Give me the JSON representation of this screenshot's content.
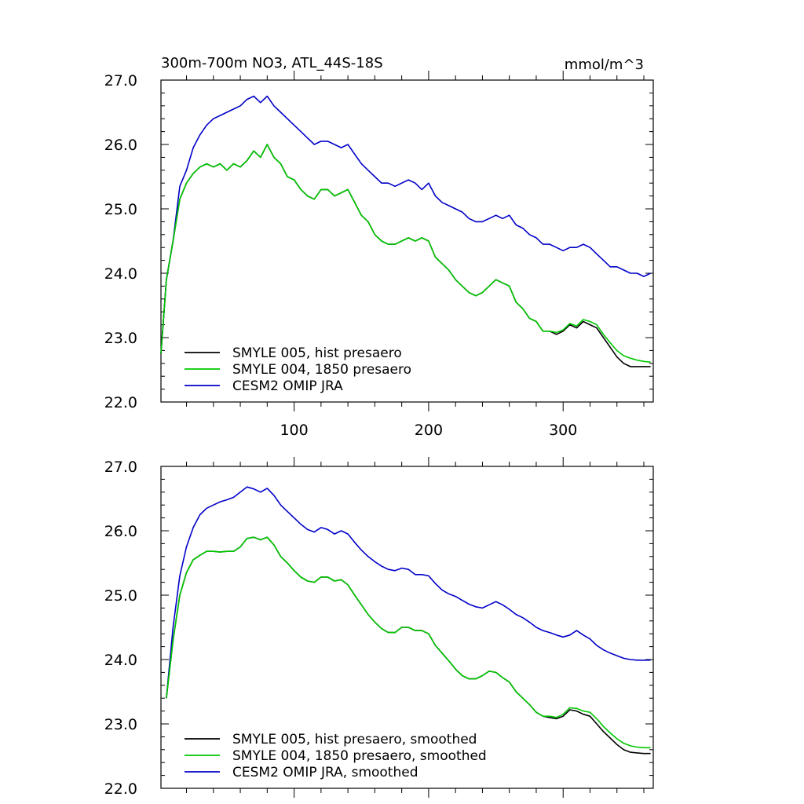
{
  "figure": {
    "title": "300m-700m NO3, ATL_44S-18S",
    "units": "mmol/m^3"
  },
  "chart_data": [
    {
      "type": "line",
      "title": "300m-700m NO3, ATL_44S-18S",
      "units": "mmol/m^3",
      "xlim": [
        1,
        367
      ],
      "ylim": [
        22.0,
        27.0
      ],
      "xticks": [
        100,
        200,
        300
      ],
      "xtick_labels": [
        "100",
        "200",
        "300"
      ],
      "yticks": [
        22.0,
        23.0,
        24.0,
        25.0,
        26.0,
        27.0
      ],
      "ytick_labels": [
        "22.0",
        "23.0",
        "24.0",
        "25.0",
        "26.0",
        "27.0"
      ],
      "grid": false,
      "legend_position": "bottom-left",
      "series": [
        {
          "name": "SMYLE 005, hist presaero",
          "color": "#000000",
          "x": [
            1,
            5,
            10,
            15,
            20,
            25,
            30,
            35,
            40,
            45,
            50,
            55,
            60,
            65,
            70,
            75,
            80,
            85,
            90,
            95,
            100,
            105,
            110,
            115,
            120,
            125,
            130,
            135,
            140,
            145,
            150,
            155,
            160,
            165,
            170,
            175,
            180,
            185,
            190,
            195,
            200,
            205,
            210,
            215,
            220,
            225,
            230,
            235,
            240,
            245,
            250,
            255,
            260,
            265,
            270,
            275,
            280,
            285,
            290,
            295,
            300,
            305,
            310,
            315,
            320,
            325,
            330,
            335,
            340,
            345,
            350,
            355,
            360,
            365
          ],
          "y": [
            22.75,
            23.9,
            24.5,
            25.15,
            25.4,
            25.55,
            25.65,
            25.7,
            25.65,
            25.7,
            25.6,
            25.7,
            25.65,
            25.75,
            25.9,
            25.8,
            26.0,
            25.8,
            25.7,
            25.5,
            25.45,
            25.3,
            25.2,
            25.15,
            25.3,
            25.3,
            25.2,
            25.25,
            25.3,
            25.1,
            24.9,
            24.8,
            24.6,
            24.5,
            24.45,
            24.45,
            24.5,
            24.55,
            24.5,
            24.55,
            24.5,
            24.25,
            24.15,
            24.05,
            23.9,
            23.8,
            23.7,
            23.65,
            23.7,
            23.8,
            23.9,
            23.85,
            23.8,
            23.55,
            23.45,
            23.3,
            23.25,
            23.1,
            23.1,
            23.05,
            23.1,
            23.2,
            23.15,
            23.25,
            23.2,
            23.15,
            23.0,
            22.85,
            22.7,
            22.6,
            22.55,
            22.55,
            22.55,
            22.55
          ]
        },
        {
          "name": "SMYLE 004, 1850 presaero",
          "color": "#00c800",
          "x": [
            1,
            5,
            10,
            15,
            20,
            25,
            30,
            35,
            40,
            45,
            50,
            55,
            60,
            65,
            70,
            75,
            80,
            85,
            90,
            95,
            100,
            105,
            110,
            115,
            120,
            125,
            130,
            135,
            140,
            145,
            150,
            155,
            160,
            165,
            170,
            175,
            180,
            185,
            190,
            195,
            200,
            205,
            210,
            215,
            220,
            225,
            230,
            235,
            240,
            245,
            250,
            255,
            260,
            265,
            270,
            275,
            280,
            285,
            290,
            295,
            300,
            305,
            310,
            315,
            320,
            325,
            330,
            335,
            340,
            345,
            350,
            355,
            360,
            365
          ],
          "y": [
            22.75,
            23.9,
            24.5,
            25.15,
            25.4,
            25.55,
            25.65,
            25.7,
            25.65,
            25.7,
            25.6,
            25.7,
            25.65,
            25.75,
            25.9,
            25.8,
            26.0,
            25.8,
            25.7,
            25.5,
            25.45,
            25.3,
            25.2,
            25.15,
            25.3,
            25.3,
            25.2,
            25.25,
            25.3,
            25.1,
            24.9,
            24.8,
            24.6,
            24.5,
            24.45,
            24.45,
            24.5,
            24.55,
            24.5,
            24.55,
            24.5,
            24.25,
            24.15,
            24.05,
            23.9,
            23.8,
            23.7,
            23.65,
            23.7,
            23.8,
            23.9,
            23.85,
            23.8,
            23.55,
            23.45,
            23.3,
            23.25,
            23.1,
            23.1,
            23.08,
            23.12,
            23.22,
            23.18,
            23.28,
            23.25,
            23.2,
            23.05,
            22.92,
            22.8,
            22.72,
            22.68,
            22.65,
            22.63,
            22.62
          ]
        },
        {
          "name": "CESM2 OMIP JRA",
          "color": "#0000c8",
          "x": [
            1,
            5,
            10,
            15,
            20,
            25,
            30,
            35,
            40,
            45,
            50,
            55,
            60,
            65,
            70,
            75,
            80,
            85,
            90,
            95,
            100,
            105,
            110,
            115,
            120,
            125,
            130,
            135,
            140,
            145,
            150,
            155,
            160,
            165,
            170,
            175,
            180,
            185,
            190,
            195,
            200,
            205,
            210,
            215,
            220,
            225,
            230,
            235,
            240,
            245,
            250,
            255,
            260,
            265,
            270,
            275,
            280,
            285,
            290,
            295,
            300,
            305,
            310,
            315,
            320,
            325,
            330,
            335,
            340,
            345,
            350,
            355,
            360,
            365
          ],
          "y": [
            22.75,
            23.9,
            24.5,
            25.35,
            25.6,
            25.95,
            26.15,
            26.3,
            26.4,
            26.45,
            26.5,
            26.55,
            26.6,
            26.7,
            26.75,
            26.65,
            26.75,
            26.6,
            26.5,
            26.4,
            26.3,
            26.2,
            26.1,
            26.0,
            26.05,
            26.05,
            26.0,
            25.95,
            26.0,
            25.85,
            25.7,
            25.6,
            25.5,
            25.4,
            25.4,
            25.35,
            25.4,
            25.45,
            25.4,
            25.3,
            25.4,
            25.2,
            25.1,
            25.05,
            25.0,
            24.95,
            24.85,
            24.8,
            24.8,
            24.85,
            24.9,
            24.85,
            24.9,
            24.75,
            24.7,
            24.6,
            24.55,
            24.45,
            24.45,
            24.4,
            24.35,
            24.4,
            24.4,
            24.45,
            24.4,
            24.3,
            24.2,
            24.1,
            24.1,
            24.05,
            24.0,
            24.0,
            23.95,
            24.0
          ]
        }
      ]
    },
    {
      "type": "line",
      "title": "",
      "xlim": [
        1,
        367
      ],
      "ylim": [
        22.0,
        27.0
      ],
      "xticks": [
        100,
        200,
        300
      ],
      "yticks": [
        22.0,
        23.0,
        24.0,
        25.0,
        26.0,
        27.0
      ],
      "ytick_labels": [
        "22.0",
        "23.0",
        "24.0",
        "25.0",
        "26.0",
        "27.0"
      ],
      "grid": false,
      "legend_position": "bottom-left",
      "series": [
        {
          "name": "SMYLE 005, hist presaero, smoothed",
          "color": "#000000",
          "x": [
            5,
            10,
            15,
            20,
            25,
            30,
            35,
            40,
            45,
            50,
            55,
            60,
            65,
            70,
            75,
            80,
            85,
            90,
            95,
            100,
            105,
            110,
            115,
            120,
            125,
            130,
            135,
            140,
            145,
            150,
            155,
            160,
            165,
            170,
            175,
            180,
            185,
            190,
            195,
            200,
            205,
            210,
            215,
            220,
            225,
            230,
            235,
            240,
            245,
            250,
            255,
            260,
            265,
            270,
            275,
            280,
            285,
            290,
            295,
            300,
            305,
            310,
            315,
            320,
            325,
            330,
            335,
            340,
            345,
            350,
            355,
            360,
            365
          ],
          "y": [
            23.4,
            24.3,
            25.0,
            25.35,
            25.55,
            25.62,
            25.68,
            25.68,
            25.67,
            25.68,
            25.68,
            25.75,
            25.88,
            25.9,
            25.86,
            25.9,
            25.78,
            25.6,
            25.5,
            25.38,
            25.28,
            25.22,
            25.2,
            25.28,
            25.28,
            25.22,
            25.24,
            25.16,
            25.0,
            24.85,
            24.7,
            24.58,
            24.48,
            24.42,
            24.42,
            24.5,
            24.5,
            24.45,
            24.45,
            24.4,
            24.22,
            24.1,
            23.98,
            23.85,
            23.75,
            23.7,
            23.7,
            23.75,
            23.82,
            23.8,
            23.72,
            23.65,
            23.5,
            23.4,
            23.3,
            23.18,
            23.12,
            23.1,
            23.08,
            23.12,
            23.22,
            23.2,
            23.15,
            23.12,
            23.0,
            22.88,
            22.78,
            22.68,
            22.6,
            22.56,
            22.55,
            22.54,
            22.54
          ]
        },
        {
          "name": "SMYLE 004, 1850 presaero, smoothed",
          "color": "#00c800",
          "x": [
            5,
            10,
            15,
            20,
            25,
            30,
            35,
            40,
            45,
            50,
            55,
            60,
            65,
            70,
            75,
            80,
            85,
            90,
            95,
            100,
            105,
            110,
            115,
            120,
            125,
            130,
            135,
            140,
            145,
            150,
            155,
            160,
            165,
            170,
            175,
            180,
            185,
            190,
            195,
            200,
            205,
            210,
            215,
            220,
            225,
            230,
            235,
            240,
            245,
            250,
            255,
            260,
            265,
            270,
            275,
            280,
            285,
            290,
            295,
            300,
            305,
            310,
            315,
            320,
            325,
            330,
            335,
            340,
            345,
            350,
            355,
            360,
            365
          ],
          "y": [
            23.4,
            24.3,
            25.0,
            25.35,
            25.55,
            25.62,
            25.68,
            25.68,
            25.67,
            25.68,
            25.68,
            25.75,
            25.88,
            25.9,
            25.86,
            25.9,
            25.78,
            25.6,
            25.5,
            25.38,
            25.28,
            25.22,
            25.2,
            25.28,
            25.28,
            25.22,
            25.24,
            25.16,
            25.0,
            24.85,
            24.7,
            24.58,
            24.48,
            24.42,
            24.42,
            24.5,
            24.5,
            24.45,
            24.45,
            24.4,
            24.22,
            24.1,
            23.98,
            23.85,
            23.75,
            23.7,
            23.7,
            23.75,
            23.82,
            23.8,
            23.72,
            23.65,
            23.5,
            23.4,
            23.3,
            23.18,
            23.12,
            23.12,
            23.1,
            23.15,
            23.25,
            23.24,
            23.2,
            23.18,
            23.08,
            22.96,
            22.86,
            22.77,
            22.7,
            22.66,
            22.64,
            22.63,
            22.63
          ]
        },
        {
          "name": "CESM2 OMIP JRA, smoothed",
          "color": "#0000c8",
          "x": [
            5,
            10,
            15,
            20,
            25,
            30,
            35,
            40,
            45,
            50,
            55,
            60,
            65,
            70,
            75,
            80,
            85,
            90,
            95,
            100,
            105,
            110,
            115,
            120,
            125,
            130,
            135,
            140,
            145,
            150,
            155,
            160,
            165,
            170,
            175,
            180,
            185,
            190,
            195,
            200,
            205,
            210,
            215,
            220,
            225,
            230,
            235,
            240,
            245,
            250,
            255,
            260,
            265,
            270,
            275,
            280,
            285,
            290,
            295,
            300,
            305,
            310,
            315,
            320,
            325,
            330,
            335,
            340,
            345,
            350,
            355,
            360,
            365
          ],
          "y": [
            23.4,
            24.5,
            25.3,
            25.75,
            26.05,
            26.25,
            26.35,
            26.4,
            26.45,
            26.48,
            26.52,
            26.6,
            26.68,
            26.65,
            26.6,
            26.66,
            26.55,
            26.4,
            26.3,
            26.2,
            26.1,
            26.02,
            25.98,
            26.05,
            26.02,
            25.95,
            26.0,
            25.95,
            25.82,
            25.7,
            25.6,
            25.52,
            25.45,
            25.4,
            25.38,
            25.42,
            25.4,
            25.32,
            25.32,
            25.3,
            25.18,
            25.08,
            25.02,
            24.98,
            24.92,
            24.86,
            24.82,
            24.8,
            24.85,
            24.9,
            24.85,
            24.78,
            24.7,
            24.65,
            24.58,
            24.5,
            24.45,
            24.42,
            24.38,
            24.35,
            24.38,
            24.45,
            24.38,
            24.32,
            24.22,
            24.15,
            24.1,
            24.06,
            24.02,
            24.0,
            23.99,
            23.99,
            23.99
          ]
        }
      ]
    }
  ]
}
